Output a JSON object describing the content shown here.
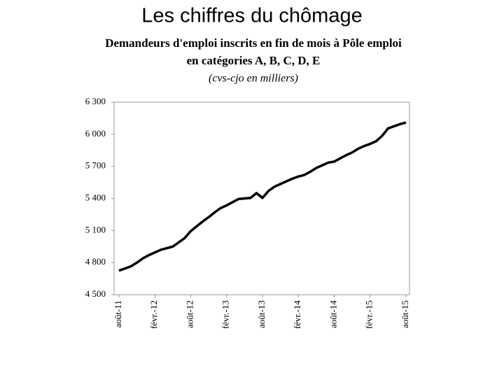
{
  "slide_title": "Les chiffres du chômage",
  "chart_data": {
    "type": "line",
    "title": [
      "Demandeurs d'emploi inscrits en fin de mois à Pôle emploi",
      "en catégories A, B, C, D, E"
    ],
    "subtitle": "(cvs-cjo en milliers)",
    "categories": [
      "août-11",
      null,
      null,
      null,
      null,
      null,
      "févr.-12",
      null,
      null,
      null,
      null,
      null,
      "août-12",
      null,
      null,
      null,
      null,
      null,
      "févr.-13",
      null,
      null,
      null,
      null,
      null,
      "août-13",
      null,
      null,
      null,
      null,
      null,
      "févr.-14",
      null,
      null,
      null,
      null,
      null,
      "août-14",
      null,
      null,
      null,
      null,
      null,
      "févr.-15",
      null,
      null,
      null,
      null,
      null,
      "août-15"
    ],
    "values": [
      4725,
      4745,
      4765,
      4800,
      4840,
      4870,
      4895,
      4920,
      4935,
      4950,
      4990,
      5030,
      5095,
      5140,
      5185,
      5225,
      5270,
      5310,
      5335,
      5365,
      5395,
      5400,
      5405,
      5450,
      5405,
      5470,
      5510,
      5535,
      5560,
      5585,
      5605,
      5620,
      5650,
      5685,
      5710,
      5735,
      5745,
      5775,
      5805,
      5830,
      5865,
      5890,
      5910,
      5935,
      5985,
      6055,
      6075,
      6095,
      6110
    ],
    "color": "#000000",
    "ylim": [
      4500,
      6300
    ],
    "yticks": [
      {
        "value": 4500,
        "label": "4 500"
      },
      {
        "value": 4800,
        "label": "4 800"
      },
      {
        "value": 5100,
        "label": "5 100"
      },
      {
        "value": 5400,
        "label": "5 400"
      },
      {
        "value": 5700,
        "label": "5 700"
      },
      {
        "value": 6000,
        "label": "6 000"
      },
      {
        "value": 6300,
        "label": "6 300"
      }
    ],
    "grid": false
  }
}
